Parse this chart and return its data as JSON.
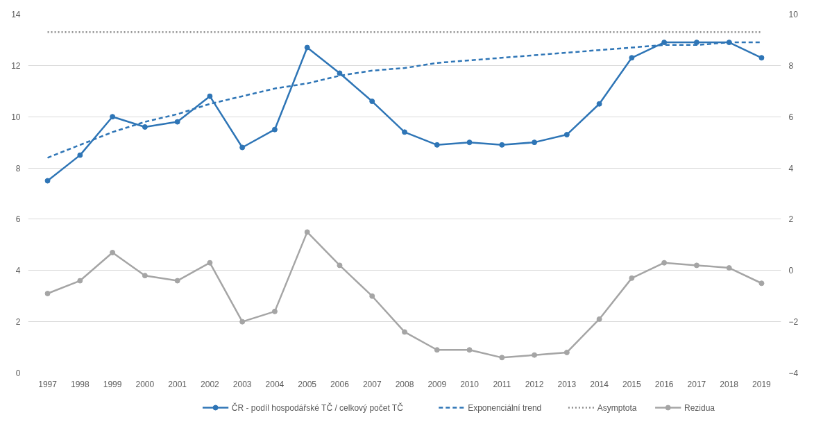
{
  "chart_data": {
    "type": "line",
    "categories": [
      "1997",
      "1998",
      "1999",
      "2000",
      "2001",
      "2002",
      "2003",
      "2004",
      "2005",
      "2006",
      "2007",
      "2008",
      "2009",
      "2010",
      "2011",
      "2012",
      "2013",
      "2014",
      "2015",
      "2016",
      "2017",
      "2018",
      "2019"
    ],
    "series": [
      {
        "name": "ČR - podíl hospodářské TČ / celkový počet TČ",
        "color": "#2e75b6",
        "line_style": "solid",
        "marker": "circle",
        "values": [
          7.5,
          8.5,
          10.0,
          9.6,
          9.8,
          10.8,
          8.8,
          9.5,
          12.7,
          11.7,
          10.6,
          9.4,
          8.9,
          9.0,
          8.9,
          9.0,
          9.3,
          10.5,
          12.3,
          12.9,
          12.9,
          12.9,
          12.3
        ]
      },
      {
        "name": "Exponenciální trend",
        "color": "#2e75b6",
        "line_style": "dashed",
        "marker": "none",
        "values": [
          8.4,
          8.9,
          9.4,
          9.8,
          10.1,
          10.5,
          10.8,
          11.1,
          11.3,
          11.6,
          11.8,
          11.9,
          12.1,
          12.2,
          12.3,
          12.4,
          12.5,
          12.6,
          12.7,
          12.8,
          12.8,
          12.9,
          12.9
        ]
      },
      {
        "name": "Asymptota",
        "color": "#8c8c8c",
        "line_style": "dotted",
        "marker": "none",
        "values": [
          13.3,
          13.3,
          13.3,
          13.3,
          13.3,
          13.3,
          13.3,
          13.3,
          13.3,
          13.3,
          13.3,
          13.3,
          13.3,
          13.3,
          13.3,
          13.3,
          13.3,
          13.3,
          13.3,
          13.3,
          13.3,
          13.3,
          13.3
        ]
      },
      {
        "name": "Rezidua",
        "color": "#a5a5a5",
        "line_style": "solid",
        "marker": "circle",
        "axis": "y2",
        "values": [
          -0.9,
          -0.4,
          0.7,
          -0.2,
          -0.4,
          0.3,
          -2.0,
          -1.6,
          1.5,
          0.2,
          -1.0,
          -2.4,
          -3.1,
          -3.1,
          -3.4,
          -3.3,
          -3.2,
          -1.9,
          -0.3,
          0.3,
          0.2,
          0.1,
          -0.5
        ]
      }
    ],
    "ylim": [
      0,
      14
    ],
    "yticks": [
      0,
      2,
      4,
      6,
      8,
      10,
      12,
      14
    ],
    "y2lim": [
      -4,
      10
    ],
    "y2ticks": [
      -4,
      -2,
      0,
      2,
      4,
      6,
      8,
      10
    ],
    "grid": "y",
    "legend": "bottom"
  }
}
